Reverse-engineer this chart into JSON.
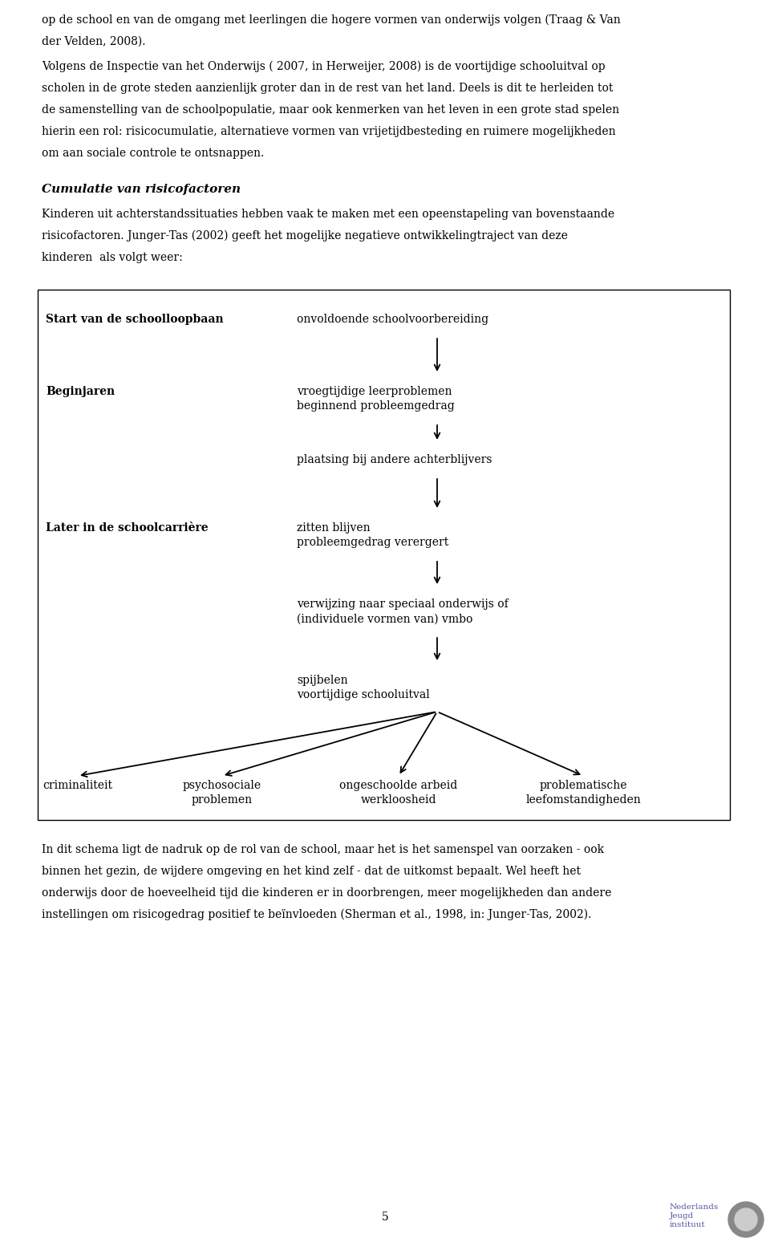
{
  "bg_color": "#ffffff",
  "text_color": "#000000",
  "page_width": 9.6,
  "page_height": 15.48,
  "top_text_lines": [
    "op de school en van de omgang met leerlingen die hogere vormen van onderwijs volgen (Traag & Van",
    "der Velden, 2008).",
    "Volgens de Inspectie van het Onderwijs ( 2007, in Herweijer, 2008) is de voortijdige schooluitval op",
    "scholen in de grote steden aanzienlijk groter dan in de rest van het land. Deels is dit te herleiden tot",
    "de samenstelling van de schoolpopulatie, maar ook kenmerken van het leven in een grote stad spelen",
    "hierin een rol: risicocumulatie, alternatieve vormen van vrijetijdbesteding en ruimere mogelijkheden",
    "om aan sociale controle te ontsnappen."
  ],
  "heading": "Cumulatie van risicofactoren",
  "para2_lines": [
    "Kinderen uit achterstandssituaties hebben vaak te maken met een opeenstapeling van bovenstaande",
    "risicofactoren. Junger-Tas (2002) geeft het mogelijke negatieve ontwikkelingtraject van deze",
    "kinderen  als volgt weer:"
  ],
  "bottom_text_lines": [
    "In dit schema ligt de nadruk op de rol van de school, maar het is het samenspel van oorzaken - ook",
    "binnen het gezin, de wijdere omgeving en het kind zelf - dat de uitkomst bepaalt. Wel heeft het",
    "onderwijs door de hoeveelheid tijd die kinderen er in doorbrengen, meer mogelijkheden dan andere",
    "instellingen om risicogedrag positief te beïnvloeden (Sherman et al., 1998, in: Junger-Tas, 2002)."
  ],
  "page_number": "5",
  "footer_org": "Nederlands\nJeugd\ninstituut",
  "flow_texts": [
    "onvoldoende schoolvoorbereiding",
    "vroegtijdige leerproblemen\nbeginnend probleemgedrag",
    "plaatsing bij andere achterblijvers",
    "zitten blijven\nprobleemgedrag verergert",
    "verwijzing naar speciaal onderwijs of\n(individuele vormen van) vmbo",
    "spijbelen\nvoortijdige schooluitval"
  ],
  "left_labels": [
    "Start van de schoolloopbaan",
    "Beginjaren",
    "Later in de schoolcarrière"
  ],
  "bottom_labels": [
    "criminaliteit",
    "psychosociale\nproblemen",
    "ongeschoolde arbeid\nwerkloosheid",
    "problematische\nleefomstandigheden"
  ]
}
